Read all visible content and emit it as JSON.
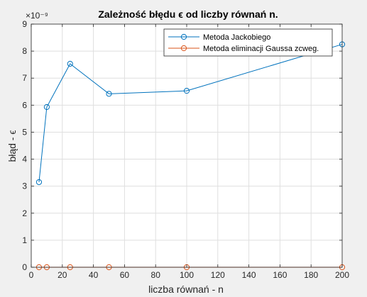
{
  "chart_data": {
    "type": "line",
    "title": "Zależność błędu ϵ od liczby równań n.",
    "xlabel": "liczba równań - n",
    "ylabel": "błąd - ϵ",
    "y_exponent_label": "×10⁻⁹",
    "xlim": [
      0,
      200
    ],
    "ylim": [
      0,
      9
    ],
    "xticks": [
      0,
      20,
      40,
      60,
      80,
      100,
      120,
      140,
      160,
      180,
      200
    ],
    "yticks": [
      0,
      1,
      2,
      3,
      4,
      5,
      6,
      7,
      8,
      9
    ],
    "grid": true,
    "legend_position": "top-right",
    "series": [
      {
        "name": "Metoda Jackobiego",
        "color": "#0072bd",
        "marker": "circle",
        "x": [
          5,
          10,
          25,
          50,
          100,
          200
        ],
        "y": [
          3.15,
          5.93,
          7.53,
          6.42,
          6.53,
          8.25
        ]
      },
      {
        "name": "Metoda eliminacji Gaussa zcweg.",
        "color": "#d95319",
        "marker": "circle",
        "x": [
          5,
          10,
          25,
          50,
          100,
          200
        ],
        "y": [
          0,
          0,
          0,
          0,
          0,
          0
        ]
      }
    ]
  }
}
